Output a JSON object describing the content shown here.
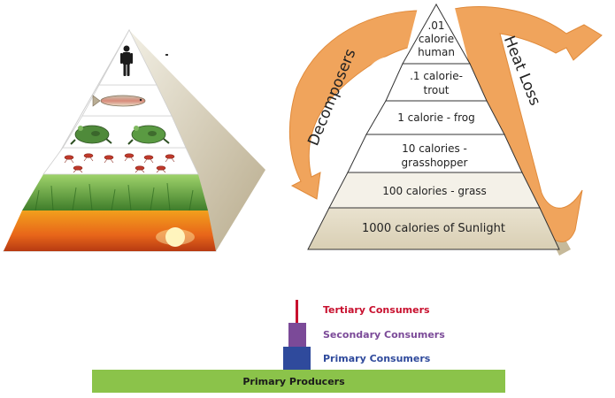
{
  "energy_pyramid": {
    "levels": [
      {
        "label_line1": ".01",
        "label_line2": "calorie",
        "label_line3": "human"
      },
      {
        "label_line1": ".1 calorie-",
        "label_line2": "trout"
      },
      {
        "label_line1": "1 calorie - frog"
      },
      {
        "label_line1": "10 calories -",
        "label_line2": "grasshopper"
      },
      {
        "label_line1": "100 calories - grass"
      },
      {
        "label_line1": "1000 calories of Sunlight"
      }
    ],
    "left_arrow_label": "Decomposers",
    "right_arrow_label": "Heat Loss",
    "arrow_color": "#f0a45c"
  },
  "trophic_bar": {
    "primary_producers": "Primary Producers",
    "primary_consumers": "Primary Consumers",
    "secondary_consumers": "Secondary Consumers",
    "tertiary_consumers": "Tertiary Consumers",
    "colors": {
      "primary_producers": "#8bc34a",
      "primary_consumers": "#2f4a9c",
      "secondary_consumers": "#7b4a98",
      "tertiary_consumers": "#c8102e"
    }
  }
}
